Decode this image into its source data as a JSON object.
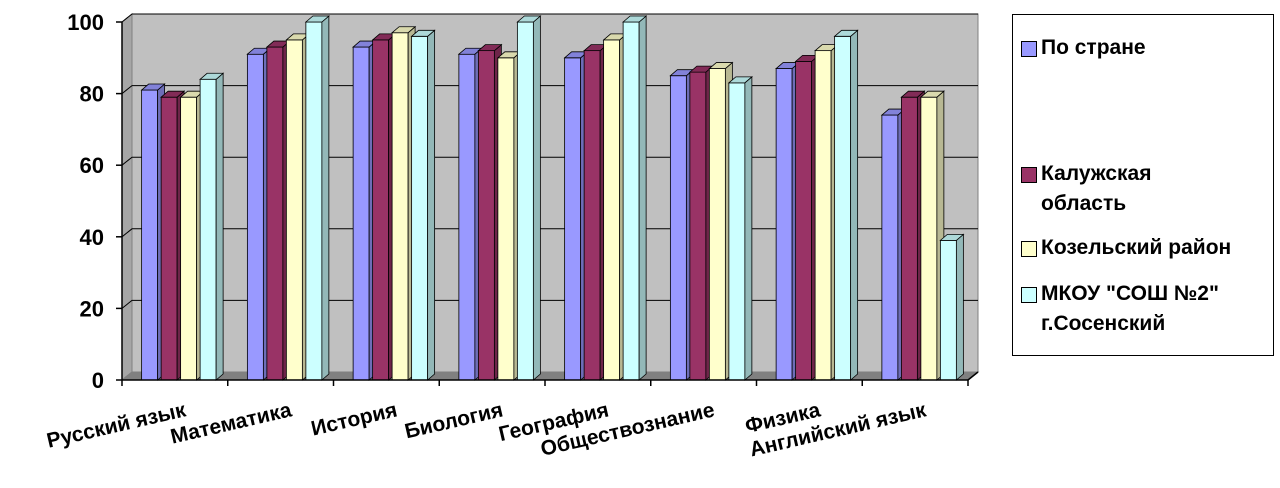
{
  "chart_data": {
    "type": "bar",
    "categories": [
      "Русский язык",
      "Математика",
      "История",
      "Биология",
      "География",
      "Обществознание",
      "Физика",
      "Английский язык"
    ],
    "series": [
      {
        "name": "По стране",
        "color": "#9999FF",
        "values": [
          81,
          91,
          93,
          91,
          90,
          85,
          87,
          74
        ]
      },
      {
        "name": "Калужская\nобласть",
        "color": "#993366",
        "values": [
          79,
          93,
          95,
          92,
          92,
          86,
          89,
          79
        ]
      },
      {
        "name": "Козельский район",
        "color": "#FFFFCC",
        "values": [
          79,
          95,
          97,
          90,
          95,
          87,
          92,
          79
        ]
      },
      {
        "name": "МКОУ \"СОШ №2\"\nг.Сосенский",
        "color": "#CCFFFF",
        "values": [
          84,
          100,
          96,
          100,
          100,
          83,
          96,
          39
        ]
      }
    ],
    "ylim": [
      0,
      100
    ],
    "yticks": [
      0,
      20,
      40,
      60,
      80,
      100
    ],
    "grid": true,
    "legend_position": "right",
    "plot_background": "#C0C0C0"
  }
}
